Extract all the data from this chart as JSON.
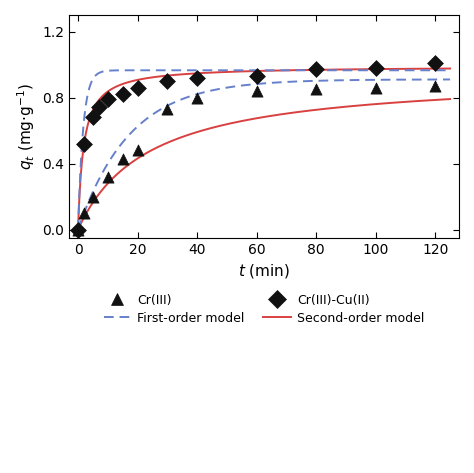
{
  "cr3_data": {
    "t": [
      0,
      2,
      5,
      10,
      15,
      20,
      30,
      40,
      60,
      80,
      100,
      120
    ],
    "q": [
      0.0,
      0.1,
      0.2,
      0.32,
      0.43,
      0.48,
      0.73,
      0.8,
      0.84,
      0.85,
      0.86,
      0.87
    ]
  },
  "cr3cu2_data": {
    "t": [
      0,
      2,
      5,
      7,
      10,
      15,
      20,
      30,
      40,
      60,
      80,
      100,
      120
    ],
    "q": [
      0.0,
      0.52,
      0.68,
      0.74,
      0.79,
      0.82,
      0.86,
      0.9,
      0.92,
      0.93,
      0.97,
      0.98,
      1.01
    ]
  },
  "first_order_cr3": {
    "qe": 0.91,
    "k1": 0.058
  },
  "second_order_cr3": {
    "qe": 0.94,
    "k2": 0.045
  },
  "first_order_cr3cu2": {
    "qe": 0.965,
    "k1": 0.58
  },
  "second_order_cr3cu2": {
    "qe": 0.99,
    "k2": 0.55
  },
  "xlim": [
    -3,
    128
  ],
  "ylim": [
    -0.05,
    1.3
  ],
  "xticks": [
    0,
    20,
    40,
    60,
    80,
    100,
    120
  ],
  "yticks": [
    0.0,
    0.4,
    0.8,
    1.2
  ],
  "xlabel": "t (min)",
  "ylabel": "q_t (mg*g^-1)",
  "marker_color": "#111111",
  "first_order_color": "#6680cc",
  "second_order_color": "#d94040",
  "figsize": [
    4.74,
    4.73
  ],
  "dpi": 100
}
